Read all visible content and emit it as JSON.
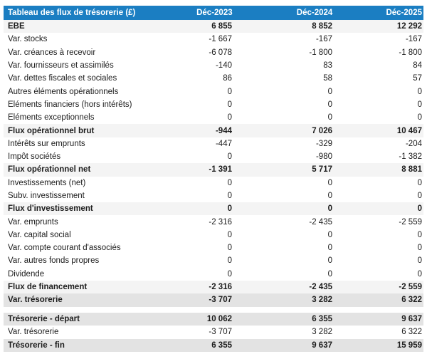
{
  "colors": {
    "header_bg": "#1b7ec2",
    "header_text": "#ffffff",
    "total_light_bg": "#f4f4f4",
    "total_dark_bg": "#e3e3e3",
    "body_text": "#1c1c1c"
  },
  "table": {
    "title": "Tableau des flux de trésorerie (£)",
    "columns": [
      "Déc-2023",
      "Déc-2024",
      "Déc-2025"
    ],
    "rows": [
      {
        "label": "EBE",
        "values": [
          "6 855",
          "8 852",
          "12 292"
        ],
        "style": "total-light"
      },
      {
        "label": "Var. stocks",
        "values": [
          "-1 667",
          "-167",
          "-167"
        ],
        "style": "normal"
      },
      {
        "label": "Var. créances à recevoir",
        "values": [
          "-6 078",
          "-1 800",
          "-1 800"
        ],
        "style": "normal"
      },
      {
        "label": "Var. fournisseurs et assimilés",
        "values": [
          "-140",
          "83",
          "84"
        ],
        "style": "normal"
      },
      {
        "label": "Var. dettes fiscales et sociales",
        "values": [
          "86",
          "58",
          "57"
        ],
        "style": "normal"
      },
      {
        "label": "Autres éléments opérationnels",
        "values": [
          "0",
          "0",
          "0"
        ],
        "style": "normal"
      },
      {
        "label": "Eléments financiers (hors intérêts)",
        "values": [
          "0",
          "0",
          "0"
        ],
        "style": "normal"
      },
      {
        "label": "Eléments exceptionnels",
        "values": [
          "0",
          "0",
          "0"
        ],
        "style": "normal"
      },
      {
        "label": "Flux opérationnel brut",
        "values": [
          "-944",
          "7 026",
          "10 467"
        ],
        "style": "total-light"
      },
      {
        "label": "Intérêts sur emprunts",
        "values": [
          "-447",
          "-329",
          "-204"
        ],
        "style": "normal"
      },
      {
        "label": "Impôt sociétés",
        "values": [
          "0",
          "-980",
          "-1 382"
        ],
        "style": "normal"
      },
      {
        "label": "Flux opérationnel net",
        "values": [
          "-1 391",
          "5 717",
          "8 881"
        ],
        "style": "total-light"
      },
      {
        "label": "Investissements (net)",
        "values": [
          "0",
          "0",
          "0"
        ],
        "style": "normal"
      },
      {
        "label": "Subv. investissement",
        "values": [
          "0",
          "0",
          "0"
        ],
        "style": "normal"
      },
      {
        "label": "Flux d'investissement",
        "values": [
          "0",
          "0",
          "0"
        ],
        "style": "total-light"
      },
      {
        "label": "Var. emprunts",
        "values": [
          "-2 316",
          "-2 435",
          "-2 559"
        ],
        "style": "normal"
      },
      {
        "label": "Var. capital social",
        "values": [
          "0",
          "0",
          "0"
        ],
        "style": "normal"
      },
      {
        "label": "Var. compte courant d'associés",
        "values": [
          "0",
          "0",
          "0"
        ],
        "style": "normal"
      },
      {
        "label": "Var. autres fonds propres",
        "values": [
          "0",
          "0",
          "0"
        ],
        "style": "normal"
      },
      {
        "label": "Dividende",
        "values": [
          "0",
          "0",
          "0"
        ],
        "style": "normal"
      },
      {
        "label": "Flux de financement",
        "values": [
          "-2 316",
          "-2 435",
          "-2 559"
        ],
        "style": "total-light"
      },
      {
        "label": "Var. trésorerie",
        "values": [
          "-3 707",
          "3 282",
          "6 322"
        ],
        "style": "total-dark"
      },
      {
        "label": "Trésorerie - départ",
        "values": [
          "10 062",
          "6 355",
          "9 637"
        ],
        "style": "total-dark",
        "gap_before": true
      },
      {
        "label": "Var. trésorerie",
        "values": [
          "-3 707",
          "3 282",
          "6 322"
        ],
        "style": "normal"
      },
      {
        "label": "Trésorerie - fin",
        "values": [
          "6 355",
          "9 637",
          "15 959"
        ],
        "style": "total-dark"
      }
    ]
  }
}
